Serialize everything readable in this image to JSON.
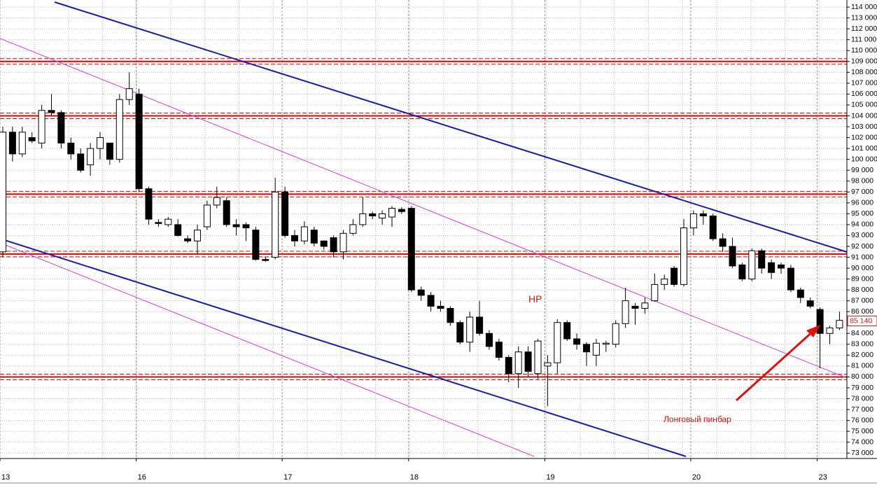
{
  "chart_data": {
    "type": "candlestick",
    "categories": [
      "13",
      null,
      null,
      null,
      null,
      null,
      null,
      null,
      null,
      null,
      null,
      null,
      null,
      null,
      "16",
      null,
      null,
      null,
      null,
      null,
      null,
      null,
      null,
      null,
      null,
      null,
      null,
      null,
      null,
      "17",
      null,
      null,
      null,
      null,
      null,
      null,
      null,
      null,
      null,
      null,
      null,
      null,
      "18",
      null,
      null,
      null,
      null,
      null,
      null,
      null,
      null,
      null,
      null,
      null,
      null,
      null,
      "19",
      null,
      null,
      null,
      null,
      null,
      null,
      null,
      null,
      null,
      null,
      null,
      null,
      null,
      null,
      "20",
      null,
      null,
      null,
      null,
      null,
      null,
      null,
      null,
      null,
      null,
      null,
      null,
      "23",
      null,
      null
    ],
    "open": [
      91500,
      102500,
      100500,
      102000,
      101500,
      104500,
      104300,
      101500,
      100500,
      99500,
      101000,
      101500,
      100000,
      105500,
      106000,
      97300,
      94200,
      94000,
      94000,
      92700,
      92500,
      93800,
      95800,
      96200,
      94000,
      94000,
      93500,
      90800,
      91000,
      97000,
      93000,
      92500,
      93500,
      92500,
      92800,
      91500,
      93200,
      94000,
      95000,
      94600,
      94700,
      95400,
      95500,
      88000,
      87500,
      86500,
      86300,
      85000,
      83200,
      85500,
      84000,
      83200,
      81800,
      80300,
      82300,
      80300,
      81000,
      81300,
      85000,
      83500,
      83000,
      82000,
      83000,
      83000,
      84900,
      86500,
      86300,
      87000,
      88500,
      90000,
      88500,
      93700,
      95000,
      94800,
      92700,
      92000,
      90300,
      89000,
      91600,
      90500,
      90300,
      90000,
      88000,
      87000,
      86200,
      84000,
      84500
    ],
    "high": [
      103000,
      103000,
      103000,
      102500,
      105000,
      106000,
      104500,
      102000,
      101000,
      101500,
      102500,
      101500,
      106000,
      108000,
      106500,
      97500,
      94500,
      94700,
      94500,
      93000,
      94000,
      96200,
      97500,
      96500,
      94500,
      94200,
      93800,
      91000,
      98300,
      97500,
      93500,
      94300,
      93800,
      92500,
      93000,
      93500,
      94500,
      96500,
      95200,
      95300,
      95700,
      95600,
      95700,
      88300,
      87800,
      87000,
      86500,
      85200,
      86000,
      87000,
      84300,
      83500,
      82000,
      82800,
      82800,
      83500,
      82000,
      85300,
      85200,
      84000,
      83200,
      83500,
      83300,
      85200,
      88200,
      86800,
      87300,
      89500,
      89400,
      90200,
      94500,
      95300,
      95300,
      95000,
      93200,
      92800,
      90500,
      91800,
      91800,
      90800,
      90500,
      90300,
      88200,
      87300,
      86400,
      84700,
      86000
    ],
    "low": [
      91000,
      99800,
      100200,
      101500,
      101000,
      104000,
      101000,
      100000,
      98800,
      98500,
      100000,
      99500,
      99700,
      105000,
      97000,
      94000,
      93800,
      93800,
      92900,
      92300,
      91300,
      93500,
      95500,
      93800,
      93000,
      92500,
      90700,
      90600,
      90800,
      92800,
      92000,
      92200,
      92000,
      91700,
      91000,
      90800,
      93000,
      93800,
      94500,
      94000,
      93800,
      95000,
      87800,
      87000,
      86000,
      86000,
      84700,
      83000,
      82300,
      83800,
      82500,
      81500,
      79500,
      79000,
      80000,
      79800,
      77300,
      80300,
      83300,
      82500,
      81000,
      81000,
      82300,
      82700,
      84500,
      84800,
      85800,
      86900,
      88000,
      88300,
      88300,
      93000,
      94000,
      92500,
      91500,
      90000,
      88800,
      88800,
      89500,
      89000,
      89500,
      87800,
      86800,
      86300,
      80800,
      83000,
      84300
    ],
    "close": [
      102500,
      100500,
      102500,
      101700,
      104500,
      104300,
      101500,
      100500,
      99000,
      101000,
      102000,
      100000,
      105500,
      106500,
      97300,
      94500,
      94100,
      94500,
      93000,
      92500,
      93500,
      95800,
      96500,
      94000,
      93800,
      93700,
      90800,
      90700,
      97000,
      93000,
      92500,
      93800,
      92300,
      92000,
      91500,
      93200,
      94000,
      95000,
      94800,
      95000,
      95500,
      95200,
      88000,
      87500,
      86500,
      86300,
      85000,
      83200,
      85500,
      84000,
      82800,
      81800,
      80300,
      82300,
      80500,
      83300,
      81300,
      85000,
      83500,
      83000,
      82300,
      83100,
      83100,
      84900,
      87000,
      86300,
      86800,
      88500,
      89000,
      88500,
      93700,
      95000,
      94800,
      92700,
      92000,
      90200,
      89000,
      91600,
      90000,
      89600,
      90000,
      88000,
      87300,
      86500,
      84000,
      84500,
      85200
    ],
    "up_color": "#ffffff",
    "down_color": "#000000",
    "ylim": [
      72500,
      114650
    ],
    "yticks": [
      {
        "value": 73000,
        "label": "73 000"
      },
      {
        "value": 74000,
        "label": "74 000"
      },
      {
        "value": 75000,
        "label": "75 000"
      },
      {
        "value": 76000,
        "label": "76 000"
      },
      {
        "value": 77000,
        "label": "77 000"
      },
      {
        "value": 78000,
        "label": "78 000"
      },
      {
        "value": 79000,
        "label": "79 000"
      },
      {
        "value": 80000,
        "label": "80 000"
      },
      {
        "value": 81000,
        "label": "81 000"
      },
      {
        "value": 82000,
        "label": "82 000"
      },
      {
        "value": 83000,
        "label": "83 000"
      },
      {
        "value": 84000,
        "label": "84 000"
      },
      {
        "value": 85000,
        "label": "85 000"
      },
      {
        "value": 86000,
        "label": "86 000"
      },
      {
        "value": 87000,
        "label": "87 000"
      },
      {
        "value": 88000,
        "label": "88 000"
      },
      {
        "value": 89000,
        "label": "89 000"
      },
      {
        "value": 90000,
        "label": "90 000"
      },
      {
        "value": 91000,
        "label": "91 000"
      },
      {
        "value": 92000,
        "label": "92 000"
      },
      {
        "value": 93000,
        "label": "93 000"
      },
      {
        "value": 94000,
        "label": "94 000"
      },
      {
        "value": 95000,
        "label": "95 000"
      },
      {
        "value": 96000,
        "label": "96 000"
      },
      {
        "value": 97000,
        "label": "97 000"
      },
      {
        "value": 98000,
        "label": "98 000"
      },
      {
        "value": 99000,
        "label": "99 000"
      },
      {
        "value": 100000,
        "label": "100 000"
      },
      {
        "value": 101000,
        "label": "101 000"
      },
      {
        "value": 102000,
        "label": "102 000"
      },
      {
        "value": 103000,
        "label": "103 000"
      },
      {
        "value": 104000,
        "label": "104 000"
      },
      {
        "value": 105000,
        "label": "105 000"
      },
      {
        "value": 106000,
        "label": "106 000"
      },
      {
        "value": 107000,
        "label": "107 000"
      },
      {
        "value": 108000,
        "label": "108 000"
      },
      {
        "value": 109000,
        "label": "109 000"
      },
      {
        "value": 110000,
        "label": "110 000"
      },
      {
        "value": 111000,
        "label": "111 000"
      },
      {
        "value": 112000,
        "label": "112 000"
      },
      {
        "value": 113000,
        "label": "113 000"
      },
      {
        "value": 114000,
        "label": "114 000"
      }
    ],
    "grid": true,
    "levels": [
      109000,
      104000,
      96800,
      91300,
      80000
    ],
    "level_color": "#dd0000",
    "last_price": {
      "value": 85140,
      "label": "85 140"
    },
    "annotations": [
      {
        "text": "НР",
        "value": 87100
      },
      {
        "text": "Лонговый пинбар"
      }
    ]
  }
}
